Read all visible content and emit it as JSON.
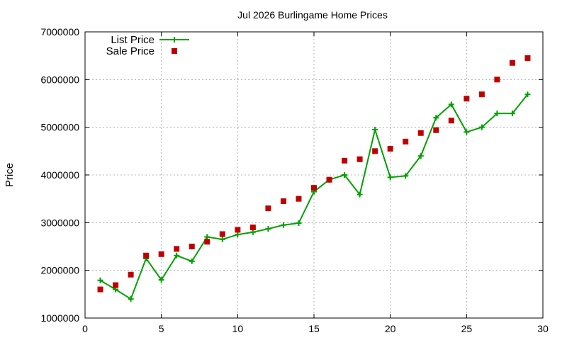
{
  "chart_data": {
    "type": "line",
    "title": "Jul 2026 Burlingame Home Prices",
    "xlabel": "",
    "ylabel": "Price",
    "xlim": [
      0,
      30
    ],
    "ylim": [
      1000000,
      7000000
    ],
    "x_ticks": [
      "0",
      "5",
      "10",
      "15",
      "20",
      "25",
      "30"
    ],
    "y_ticks": [
      "1000000",
      "2000000",
      "3000000",
      "4000000",
      "5000000",
      "6000000",
      "7000000"
    ],
    "grid": true,
    "legend_position": "top-left",
    "series": [
      {
        "name": "List Price",
        "style": "line-with-plus-markers",
        "color": "#00a000",
        "x": [
          1,
          2,
          3,
          4,
          5,
          6,
          7,
          8,
          9,
          10,
          11,
          12,
          13,
          14,
          15,
          16,
          17,
          18,
          19,
          20,
          21,
          22,
          23,
          24,
          25,
          26,
          27,
          28,
          29
        ],
        "values": [
          1790000,
          1600000,
          1400000,
          2250000,
          1800000,
          2310000,
          2190000,
          2700000,
          2650000,
          2750000,
          2800000,
          2870000,
          2950000,
          2990000,
          3650000,
          3900000,
          4000000,
          3590000,
          4950000,
          3950000,
          3980000,
          4400000,
          5200000,
          5480000,
          4900000,
          5000000,
          5290000,
          5290000,
          5690000
        ]
      },
      {
        "name": "Sale Price",
        "style": "square-markers",
        "color": "#c00000",
        "x": [
          1,
          2,
          3,
          4,
          5,
          6,
          7,
          8,
          9,
          10,
          11,
          12,
          13,
          14,
          15,
          16,
          17,
          18,
          19,
          20,
          21,
          22,
          23,
          24,
          25,
          26,
          27,
          28,
          29
        ],
        "values": [
          1600000,
          1690000,
          1910000,
          2310000,
          2340000,
          2450000,
          2500000,
          2600000,
          2760000,
          2850000,
          2900000,
          3300000,
          3450000,
          3500000,
          3730000,
          3900000,
          4300000,
          4330000,
          4500000,
          4550000,
          4700000,
          4880000,
          4940000,
          5140000,
          5600000,
          5690000,
          6000000,
          6350000,
          6450000
        ]
      }
    ]
  }
}
